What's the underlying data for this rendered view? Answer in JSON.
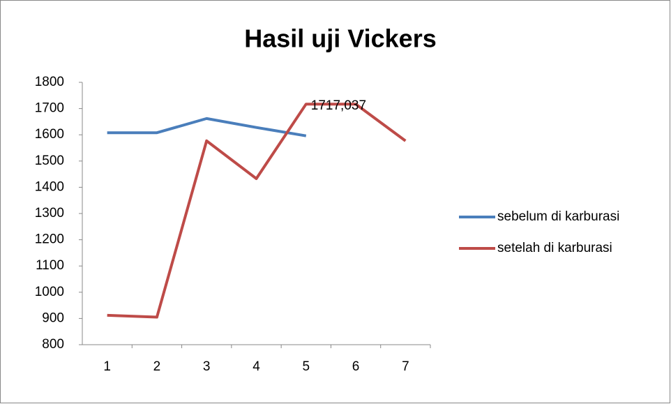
{
  "chart_data": {
    "type": "line",
    "title": "Hasil uji Vickers",
    "categories": [
      "1",
      "2",
      "3",
      "4",
      "5",
      "6",
      "7"
    ],
    "series": [
      {
        "name": "sebelum di karburasi",
        "color": "#4a7ebb",
        "values": [
          1608,
          1608,
          1662,
          1628,
          1596,
          null,
          null
        ]
      },
      {
        "name": "setelah di karburasi",
        "color": "#be4b48",
        "values": [
          912,
          905,
          1577,
          1433,
          1717.037,
          1717,
          1577
        ],
        "value_labels": [
          null,
          null,
          null,
          null,
          "1717,037",
          null,
          null
        ]
      }
    ],
    "ylim": [
      800,
      1800
    ],
    "yticks": [
      800,
      900,
      1000,
      1100,
      1200,
      1300,
      1400,
      1500,
      1600,
      1700,
      1800
    ],
    "grid": false,
    "legend": "right"
  }
}
